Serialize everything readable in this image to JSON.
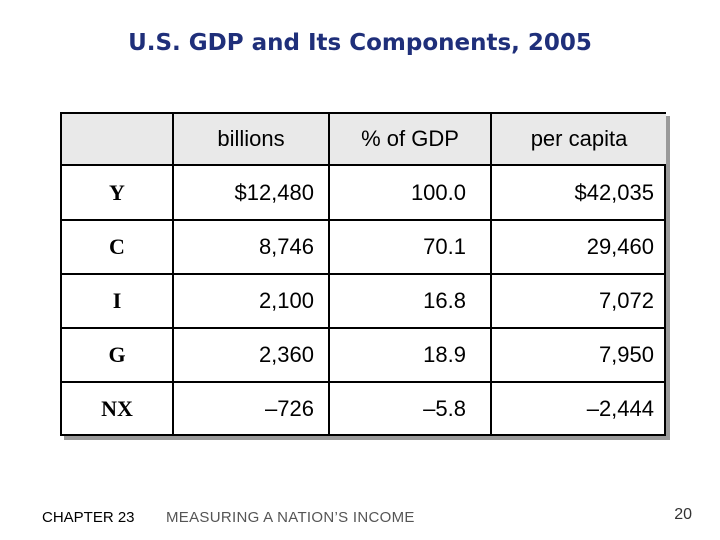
{
  "slide": {
    "title": "U.S. GDP and Its Components, 2005",
    "footer_chapter": "CHAPTER 23",
    "footer_text": "MEASURING A NATION’S INCOME",
    "page_number": "20"
  },
  "table": {
    "headers": [
      "",
      "billions",
      "% of GDP",
      "per capita"
    ],
    "rows": [
      {
        "label": "Y",
        "billions": "$12,480",
        "pct": "100.0",
        "per_capita": "$42,035"
      },
      {
        "label": "C",
        "billions": "8,746",
        "pct": "70.1",
        "per_capita": "29,460"
      },
      {
        "label": "I",
        "billions": "2,100",
        "pct": "16.8",
        "per_capita": "7,072"
      },
      {
        "label": "G",
        "billions": "2,360",
        "pct": "18.9",
        "per_capita": "7,950"
      },
      {
        "label": "NX",
        "billions": "–726",
        "pct": "–5.8",
        "per_capita": "–2,444"
      }
    ]
  }
}
